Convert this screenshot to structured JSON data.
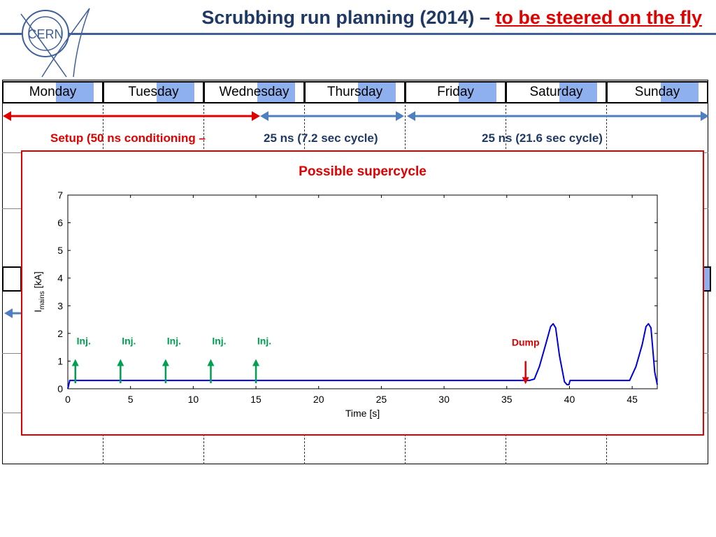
{
  "title": {
    "main": "Scrubbing run planning (2014) –",
    "highlight": "to be steered on the fly"
  },
  "logo": {
    "text": "CERN"
  },
  "days": [
    "Monday",
    "Tuesday",
    "Wednesday",
    "Thursday",
    "Friday",
    "Saturday",
    "Sunday"
  ],
  "phases": [
    {
      "label": "Setup (50 ns conditioning –",
      "color": "#e00000"
    },
    {
      "label": "25 ns (7.2 sec cycle)",
      "color": "#1f3864"
    },
    {
      "label": "25 ns (21.6 sec cycle)",
      "color": "#1f3864"
    }
  ],
  "colors": {
    "accent_blue": "#4f7fbf",
    "red": "#e00000",
    "inj_green": "#00a050",
    "tab_fill": "#8fb0ee",
    "trace": "#0000dd"
  },
  "panel": {
    "title": "Possible supercycle"
  },
  "chart_data": {
    "type": "line",
    "xlabel": "Time [s]",
    "ylabel_main": "I",
    "ylabel_sub": "mains",
    "ylabel_unit": "[kA]",
    "xlim": [
      0,
      47
    ],
    "ylim": [
      0,
      7
    ],
    "xticks": [
      0,
      5,
      10,
      15,
      20,
      25,
      30,
      35,
      40,
      45
    ],
    "yticks": [
      0,
      1,
      2,
      3,
      4,
      5,
      6,
      7
    ],
    "series": [
      {
        "color": "#0000dd",
        "x": [
          0,
          0.15,
          0.3,
          36.8,
          37.2,
          37.6,
          38.1,
          38.5,
          38.7,
          38.9,
          39.2,
          39.6,
          39.8,
          39.95,
          40.05,
          40.2,
          42.3,
          43.0,
          44.8,
          45.3,
          45.8,
          46.1,
          46.3,
          46.5,
          46.8,
          47.0
        ],
        "y": [
          0,
          0.3,
          0.3,
          0.3,
          0.35,
          0.8,
          1.6,
          2.25,
          2.35,
          2.2,
          1.2,
          0.25,
          0.15,
          0.15,
          0.3,
          0.3,
          0.3,
          0.3,
          0.3,
          0.8,
          1.6,
          2.25,
          2.35,
          2.2,
          0.6,
          0.15
        ]
      }
    ],
    "annotations": [
      {
        "text": "Inj.",
        "x": 0.6,
        "kind": "injection"
      },
      {
        "text": "Inj.",
        "x": 4.2,
        "kind": "injection"
      },
      {
        "text": "Inj.",
        "x": 7.8,
        "kind": "injection"
      },
      {
        "text": "Inj.",
        "x": 11.4,
        "kind": "injection"
      },
      {
        "text": "Inj.",
        "x": 15.0,
        "kind": "injection"
      },
      {
        "text": "Dump",
        "x": 36.5,
        "kind": "dump"
      }
    ]
  }
}
